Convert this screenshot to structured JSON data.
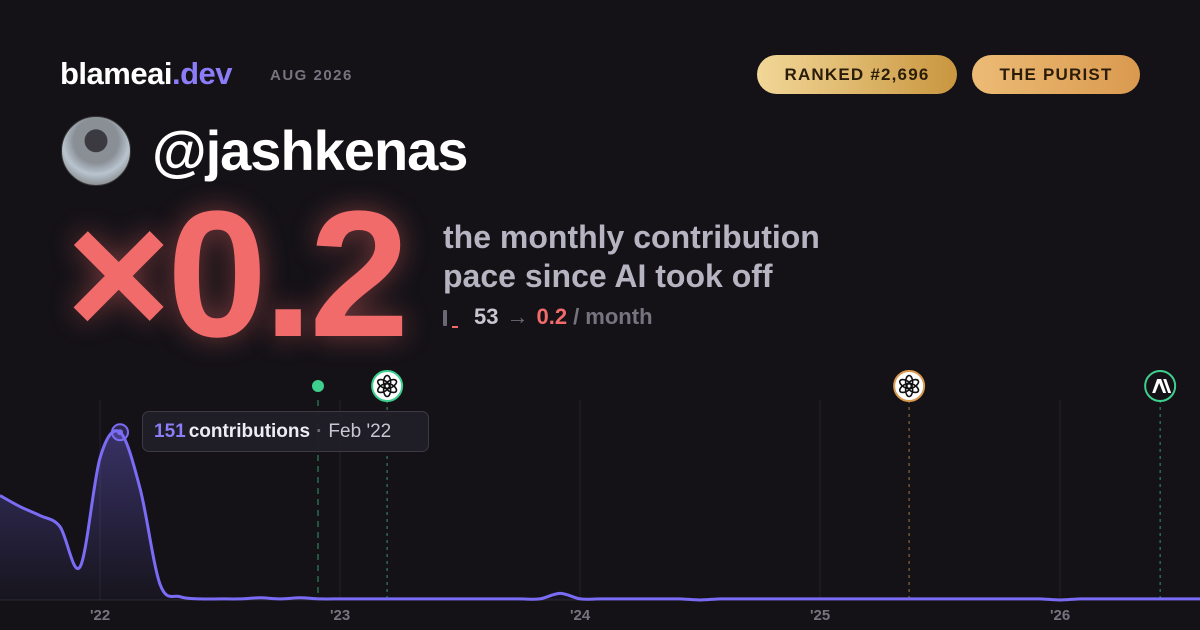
{
  "header": {
    "brand": "blameai",
    "brand_suffix": ".dev",
    "date": "AUG 2026",
    "badges": [
      "RANKED #2,696",
      "THE PURIST"
    ]
  },
  "profile": {
    "handle": "@jashkenas"
  },
  "headline": {
    "multiplier": "×0.2",
    "caption_lines": [
      "the monthly contribution",
      "pace since AI took off"
    ],
    "before": "53",
    "arrow": "→",
    "after": "0.2",
    "unit": "/ month"
  },
  "chart_data": {
    "type": "area",
    "color": "#7b6cf6",
    "x": [
      2021.583,
      2021.667,
      2021.75,
      2021.833,
      2021.917,
      2022.0,
      2022.083,
      2022.167,
      2022.25,
      2022.333,
      2022.417,
      2022.5,
      2022.583,
      2022.667,
      2022.75,
      2022.833,
      2022.917,
      2023.0,
      2023.083,
      2023.167,
      2023.25,
      2023.333,
      2023.417,
      2023.5,
      2023.583,
      2023.667,
      2023.75,
      2023.833,
      2023.917,
      2024.0,
      2024.083,
      2024.167,
      2024.25,
      2024.333,
      2024.417,
      2024.5,
      2024.583,
      2024.667,
      2024.75,
      2024.833,
      2024.917,
      2025.0,
      2025.083,
      2025.167,
      2025.25,
      2025.333,
      2025.417,
      2025.5,
      2025.583,
      2025.667,
      2025.75,
      2025.833,
      2025.917,
      2026.0,
      2026.083,
      2026.167,
      2026.25,
      2026.333,
      2026.417,
      2026.5,
      2026.583
    ],
    "values": [
      94,
      84,
      76,
      66,
      30,
      128,
      151,
      100,
      14,
      3,
      1,
      1,
      1,
      2,
      1,
      2,
      1,
      1,
      1,
      1,
      1,
      1,
      1,
      1,
      1,
      1,
      1,
      1,
      6,
      1,
      1,
      1,
      1,
      1,
      1,
      0,
      1,
      1,
      1,
      1,
      1,
      1,
      1,
      1,
      1,
      1,
      1,
      1,
      1,
      1,
      1,
      1,
      1,
      0,
      1,
      1,
      1,
      1,
      1,
      1,
      1
    ],
    "xlim": [
      2021.583,
      2026.583
    ],
    "ylim": [
      0,
      180
    ],
    "xticks": [
      {
        "value": 2022,
        "label": "'22"
      },
      {
        "value": 2023,
        "label": "'23"
      },
      {
        "value": 2024,
        "label": "'24"
      },
      {
        "value": 2025,
        "label": "'25"
      },
      {
        "value": 2026,
        "label": "'26"
      }
    ],
    "grid": true,
    "markers": [
      2022.908,
      2023.196,
      2025.371,
      2026.417
    ],
    "tooltip": {
      "word": "contributions",
      "separator": "·",
      "date": "Feb '22"
    }
  }
}
